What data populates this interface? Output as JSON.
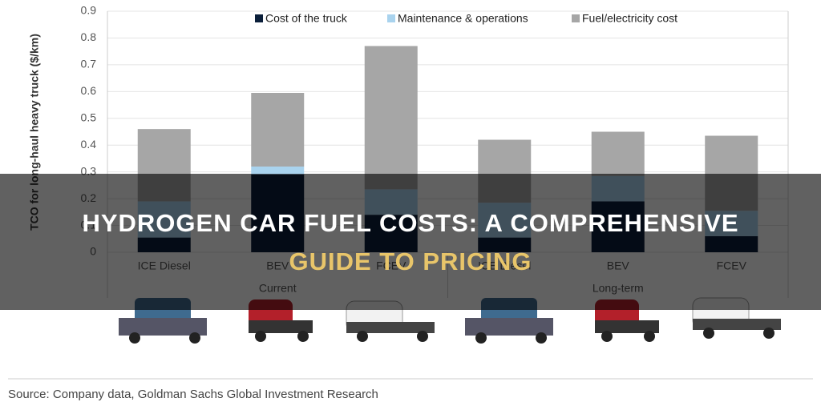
{
  "chart_data": {
    "type": "stacked-bar",
    "ylabel": "TCO for long-haul heavy truck ($/km)",
    "categories": [
      "ICE Diesel",
      "BEV",
      "FCEV",
      "ICE Diesel",
      "BEV",
      "FCEV"
    ],
    "groups": [
      "Current",
      "Long-term"
    ],
    "series": [
      {
        "name": "Cost of the truck",
        "color": "#0b1f3a",
        "values": [
          0.055,
          0.29,
          0.14,
          0.055,
          0.19,
          0.06
        ]
      },
      {
        "name": "Maintenance & operations",
        "color": "#a9d3ee",
        "values": [
          0.135,
          0.03,
          0.095,
          0.13,
          0.095,
          0.095
        ]
      },
      {
        "name": "Fuel/electricity cost",
        "color": "#a6a6a6",
        "values": [
          0.27,
          0.275,
          0.535,
          0.235,
          0.165,
          0.28
        ]
      }
    ],
    "ylim": [
      0,
      0.9
    ],
    "yticks": [
      0,
      0.1,
      0.2,
      0.3,
      0.4,
      0.5,
      0.6,
      0.7,
      0.8,
      0.9
    ],
    "grid": true,
    "source": "Source: Company data, Goldman Sachs Global Investment Research"
  },
  "overlay": {
    "title_line1": "HYDROGEN CAR FUEL COSTS: A COMPREHENSIVE",
    "title_line2": "GUIDE TO PRICING"
  }
}
